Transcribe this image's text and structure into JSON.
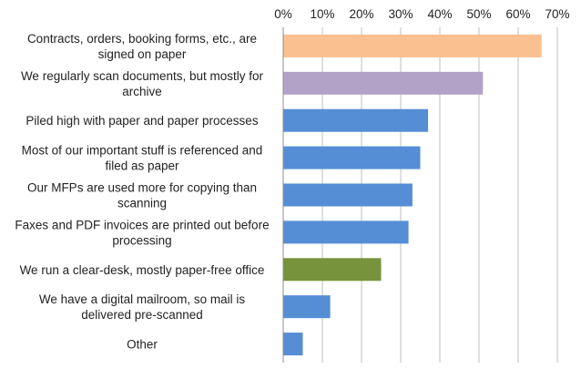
{
  "chart_data": {
    "type": "bar",
    "orientation": "horizontal",
    "categories": [
      [
        "Contracts, orders, booking forms, etc., are",
        "signed on paper"
      ],
      [
        "We regularly scan documents, but mostly for",
        "archive"
      ],
      [
        "Piled high with paper and paper processes"
      ],
      [
        "Most of our important stuff is referenced and",
        "filed as paper"
      ],
      [
        "Our MFPs are used more for copying than",
        "scanning"
      ],
      [
        "Faxes and PDF invoices are printed out before",
        "processing"
      ],
      [
        "We run a clear-desk, mostly paper-free office"
      ],
      [
        "We have a digital mailroom, so mail is",
        "delivered pre-scanned"
      ],
      [
        "Other"
      ]
    ],
    "values": [
      66,
      51,
      37,
      35,
      33,
      32,
      25,
      12,
      5
    ],
    "colors": [
      "#fac090",
      "#b3a2c7",
      "#558ed5",
      "#558ed5",
      "#558ed5",
      "#558ed5",
      "#77933c",
      "#558ed5",
      "#558ed5"
    ],
    "xlim": [
      0,
      70
    ],
    "ticks": [
      "0%",
      "10%",
      "20%",
      "30%",
      "40%",
      "50%",
      "60%",
      "70%"
    ],
    "tick_step": 10,
    "axis_position": "top",
    "grid": true,
    "title": "",
    "xlabel": "",
    "ylabel": ""
  }
}
